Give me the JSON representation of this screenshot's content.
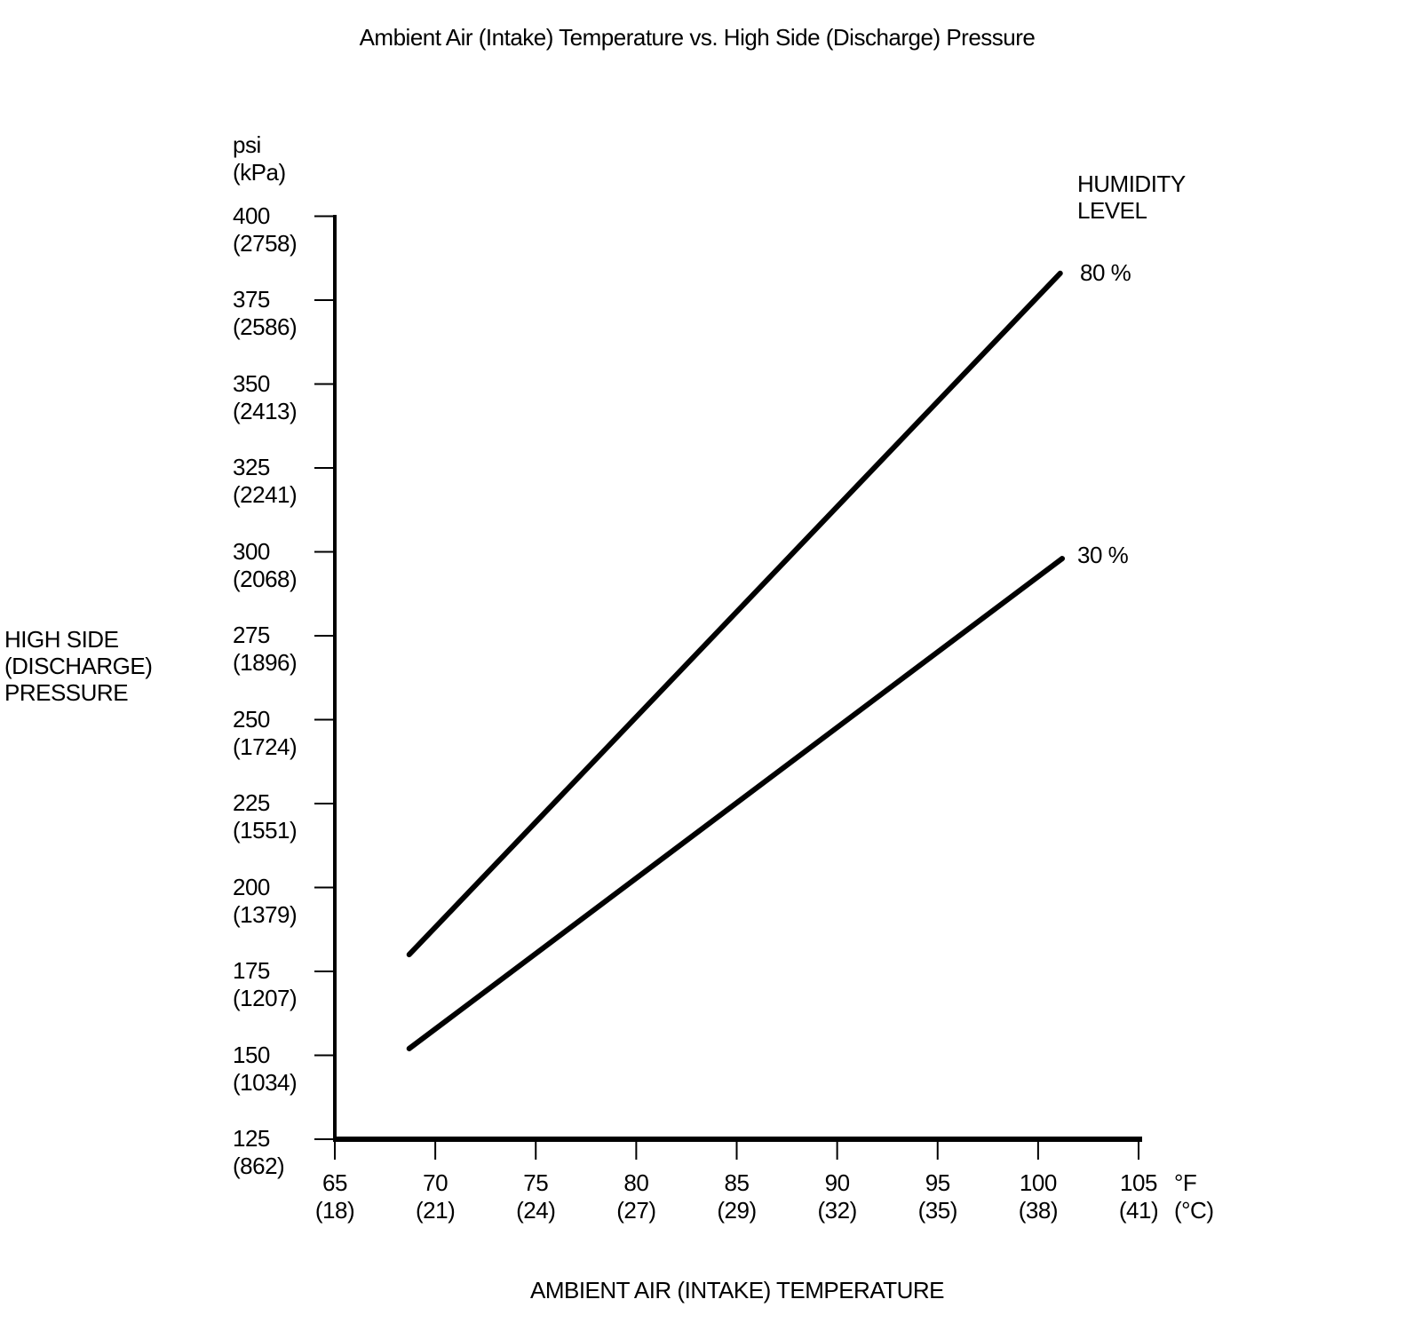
{
  "page": {
    "background_color": "#ffffff",
    "text_color": "#000000"
  },
  "chart_data": {
    "type": "line",
    "title": "Ambient Air (Intake) Temperature vs. High Side (Discharge) Pressure",
    "line_color": "#000000",
    "grid": false,
    "x_axis": {
      "title": "AMBIENT AIR (INTAKE) TEMPERATURE",
      "unit_primary": "°F",
      "unit_secondary": "(°C)",
      "xlim": [
        65,
        105
      ],
      "ticks": [
        {
          "value": 65,
          "label_f": "65",
          "label_c": "(18)"
        },
        {
          "value": 70,
          "label_f": "70",
          "label_c": "(21)"
        },
        {
          "value": 75,
          "label_f": "75",
          "label_c": "(24)"
        },
        {
          "value": 80,
          "label_f": "80",
          "label_c": "(27)"
        },
        {
          "value": 85,
          "label_f": "85",
          "label_c": "(29)"
        },
        {
          "value": 90,
          "label_f": "90",
          "label_c": "(32)"
        },
        {
          "value": 95,
          "label_f": "95",
          "label_c": "(35)"
        },
        {
          "value": 100,
          "label_f": "100",
          "label_c": "(38)"
        },
        {
          "value": 105,
          "label_f": "105",
          "label_c": "(41)"
        }
      ]
    },
    "y_axis": {
      "title": "HIGH SIDE\n(DISCHARGE)\nPRESSURE",
      "unit_primary": "psi",
      "unit_secondary": "(kPa)",
      "ylim": [
        125,
        400
      ],
      "ticks": [
        {
          "value": 400,
          "label_psi": "400",
          "label_kpa": "(2758)"
        },
        {
          "value": 375,
          "label_psi": "375",
          "label_kpa": "(2586)"
        },
        {
          "value": 350,
          "label_psi": "350",
          "label_kpa": "(2413)"
        },
        {
          "value": 325,
          "label_psi": "325",
          "label_kpa": "(2241)"
        },
        {
          "value": 300,
          "label_psi": "300",
          "label_kpa": "(2068)"
        },
        {
          "value": 275,
          "label_psi": "275",
          "label_kpa": "(1896)"
        },
        {
          "value": 250,
          "label_psi": "250",
          "label_kpa": "(1724)"
        },
        {
          "value": 225,
          "label_psi": "225",
          "label_kpa": "(1551)"
        },
        {
          "value": 200,
          "label_psi": "200",
          "label_kpa": "(1379)"
        },
        {
          "value": 175,
          "label_psi": "175",
          "label_kpa": "(1207)"
        },
        {
          "value": 150,
          "label_psi": "150",
          "label_kpa": "(1034)"
        },
        {
          "value": 125,
          "label_psi": "125",
          "label_kpa": "(862)"
        }
      ]
    },
    "legend": {
      "title": "HUMIDITY\nLEVEL",
      "position": "top-right"
    },
    "series": [
      {
        "name": "humidity-80-percent",
        "label": "80 %",
        "points_f_psi": [
          [
            68.7,
            180
          ],
          [
            101.1,
            383
          ]
        ]
      },
      {
        "name": "humidity-30-percent",
        "label": "30 %",
        "points_f_psi": [
          [
            68.7,
            152
          ],
          [
            101.2,
            298
          ]
        ]
      }
    ]
  }
}
